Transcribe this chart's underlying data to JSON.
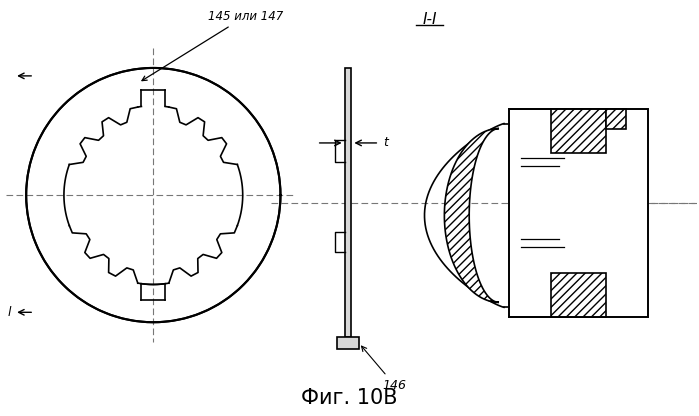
{
  "title": "Фиг. 10В",
  "section_label": "I-I",
  "label_145_147": "145 или 147",
  "label_146": "146",
  "label_t": "t",
  "label_l": "l",
  "bg_color": "#ffffff",
  "line_color": "#000000",
  "fig_width": 6.99,
  "fig_height": 4.16
}
